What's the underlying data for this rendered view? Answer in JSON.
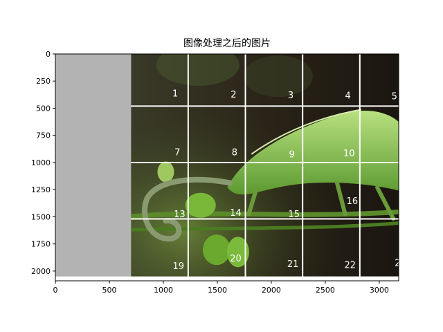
{
  "chart_data": {
    "type": "image",
    "title": "图像处理之后的图片",
    "xlabel": "",
    "ylabel": "",
    "xlim": [
      0,
      3180
    ],
    "ylim": [
      2090,
      0
    ],
    "x_ticks": [
      0,
      500,
      1000,
      1500,
      2000,
      2500,
      3000
    ],
    "y_ticks": [
      0,
      250,
      500,
      750,
      1000,
      1250,
      1500,
      1750,
      2000
    ],
    "padding_region": {
      "x0": 0,
      "x1": 700,
      "y0": 0,
      "y1": 2050,
      "color": "#b3b3b3"
    },
    "image_extent": {
      "x0": 700,
      "x1": 3180,
      "y0": 0,
      "y1": 2050
    },
    "grid_lines_x": [
      1230,
      1760,
      2290,
      2820
    ],
    "grid_lines_y": [
      480,
      1000,
      1520
    ],
    "grid_line_color": "#ffffff",
    "tile_labels": [
      {
        "text": "1",
        "x": 1110,
        "y": 370
      },
      {
        "text": "2",
        "x": 1650,
        "y": 380
      },
      {
        "text": "3",
        "x": 2180,
        "y": 385
      },
      {
        "text": "4",
        "x": 2710,
        "y": 390
      },
      {
        "text": "5",
        "x": 3140,
        "y": 395
      },
      {
        "text": "7",
        "x": 1130,
        "y": 910
      },
      {
        "text": "8",
        "x": 1660,
        "y": 910
      },
      {
        "text": "9",
        "x": 2190,
        "y": 930
      },
      {
        "text": "10",
        "x": 2720,
        "y": 920
      },
      {
        "text": "13",
        "x": 1150,
        "y": 1480
      },
      {
        "text": "14",
        "x": 1670,
        "y": 1470
      },
      {
        "text": "15",
        "x": 2210,
        "y": 1480
      },
      {
        "text": "16",
        "x": 2750,
        "y": 1360
      },
      {
        "text": "19",
        "x": 1140,
        "y": 1960
      },
      {
        "text": "20",
        "x": 1670,
        "y": 1890
      },
      {
        "text": "21",
        "x": 2200,
        "y": 1940
      },
      {
        "text": "22",
        "x": 2730,
        "y": 1950
      },
      {
        "text": "2",
        "x": 3170,
        "y": 1930
      }
    ]
  }
}
